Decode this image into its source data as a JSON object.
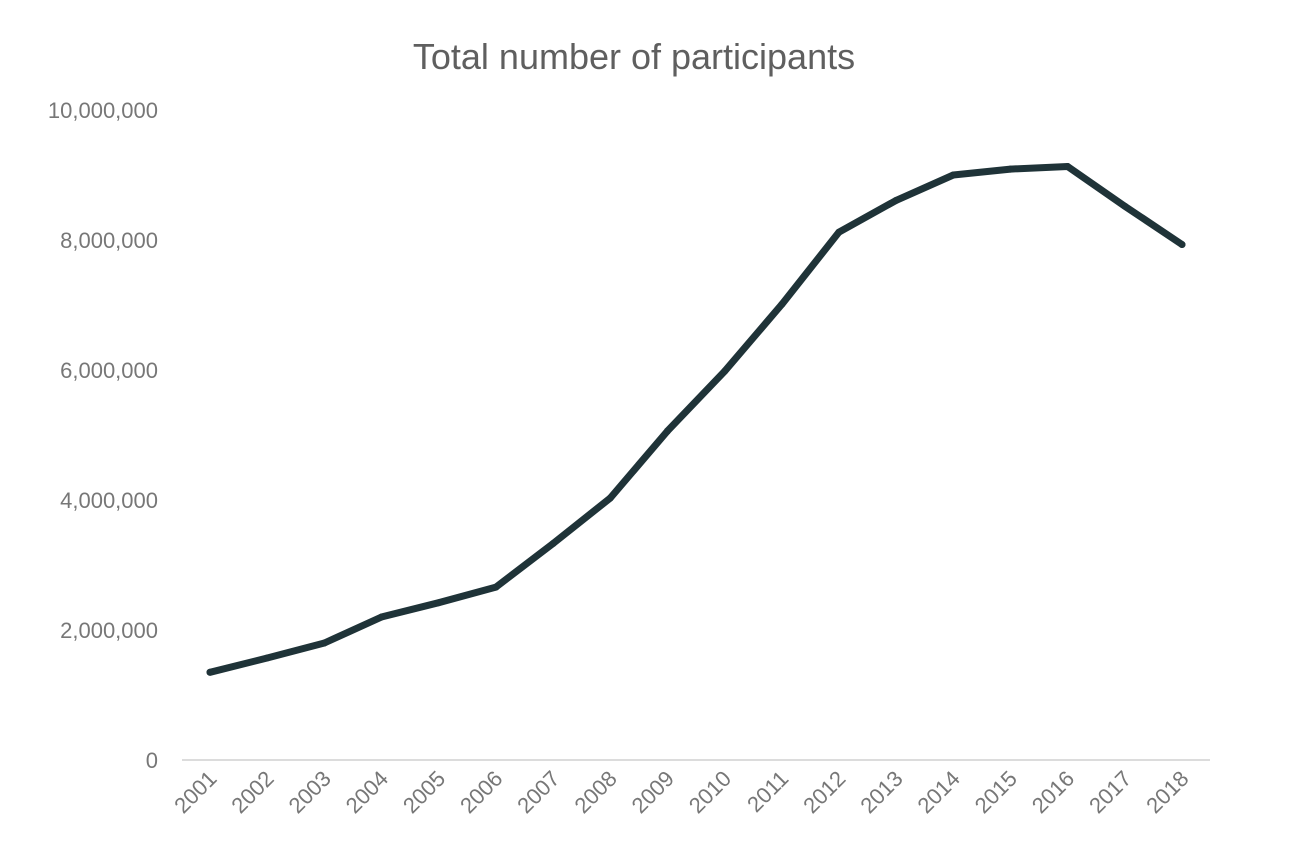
{
  "chart_data": {
    "type": "line",
    "title": "Total number of participants",
    "xlabel": "",
    "ylabel": "",
    "categories": [
      "2001",
      "2002",
      "2003",
      "2004",
      "2005",
      "2006",
      "2007",
      "2008",
      "2009",
      "2010",
      "2011",
      "2012",
      "2013",
      "2014",
      "2015",
      "2016",
      "2017",
      "2018"
    ],
    "series": [
      {
        "values": [
          1350000,
          1570000,
          1800000,
          2200000,
          2420000,
          2660000,
          3330000,
          4030000,
          5060000,
          5980000,
          7010000,
          8120000,
          8610000,
          9000000,
          9090000,
          9130000,
          8520000,
          7930000
        ]
      }
    ],
    "ylim": [
      0,
      10000000
    ],
    "yticks": [
      "0",
      "2,000,000",
      "4,000,000",
      "6,000,000",
      "8,000,000",
      "10,000,000"
    ],
    "ytick_values": [
      0,
      2000000,
      4000000,
      6000000,
      8000000,
      10000000
    ],
    "grid": false,
    "legend": "none",
    "colors": {
      "line": "#1f3338",
      "axis": "#d0d0d0",
      "text": "#777777",
      "title": "#5f5f5f"
    }
  }
}
